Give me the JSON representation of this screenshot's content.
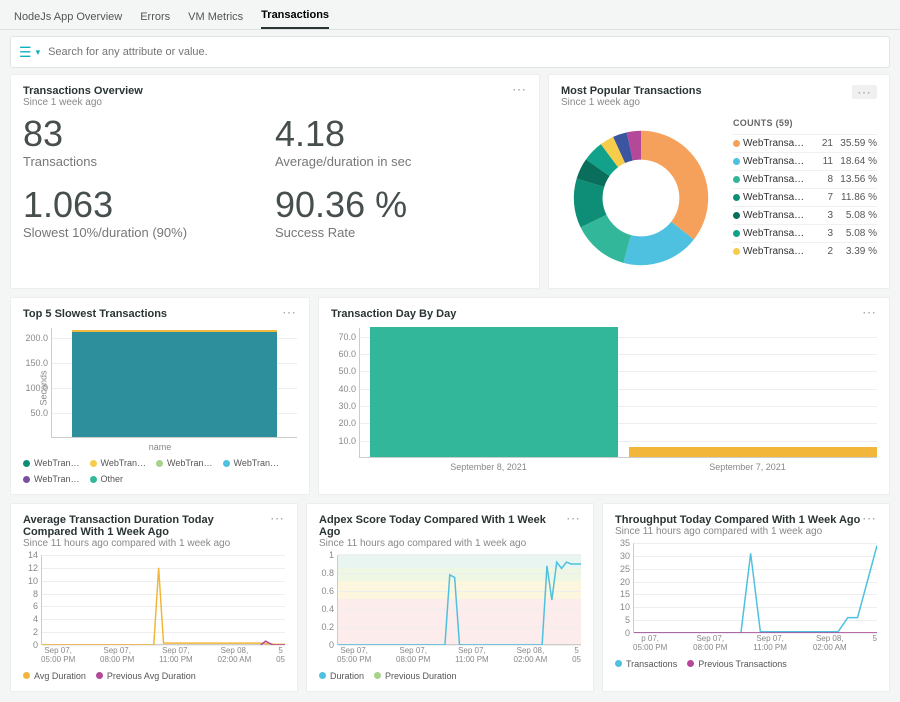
{
  "tabs": {
    "items": [
      "NodeJs App Overview",
      "Errors",
      "VM Metrics",
      "Transactions"
    ],
    "activeIndex": 3
  },
  "search": {
    "placeholder": "Search for any attribute or value."
  },
  "overview": {
    "title": "Transactions Overview",
    "subtitle": "Since 1 week ago",
    "metrics": [
      {
        "value": "83",
        "label": "Transactions"
      },
      {
        "value": "4.18",
        "label": "Average/duration in sec"
      },
      {
        "value": "1.063",
        "label": "Slowest 10%/duration (90%)"
      },
      {
        "value": "90.36 %",
        "label": "Success Rate"
      }
    ]
  },
  "popular": {
    "title": "Most Popular Transactions",
    "subtitle": "Since 1 week ago",
    "countsLabel": "COUNTS (59)",
    "colors": [
      "#f5a15b",
      "#4fc1e0",
      "#33b79a",
      "#0e8e76",
      "#0a6e5c",
      "#12a18a",
      "#f7cc4b",
      "#3b55a0",
      "#b4499a"
    ],
    "slices": [
      35.59,
      18.64,
      13.56,
      11.86,
      5.08,
      5.08,
      3.39,
      3.4,
      3.4
    ],
    "rows": [
      {
        "name": "WebTransaction…",
        "count": "21",
        "pct": "35.59 %",
        "color": "#f5a15b"
      },
      {
        "name": "WebTransaction…",
        "count": "11",
        "pct": "18.64 %",
        "color": "#4fc1e0"
      },
      {
        "name": "WebTransaction…",
        "count": "8",
        "pct": "13.56 %",
        "color": "#33b79a"
      },
      {
        "name": "WebTransaction…",
        "count": "7",
        "pct": "11.86 %",
        "color": "#0e8e76"
      },
      {
        "name": "WebTransaction…",
        "count": "3",
        "pct": "5.08 %",
        "color": "#0a6e5c"
      },
      {
        "name": "WebTransaction…",
        "count": "3",
        "pct": "5.08 %",
        "color": "#12a18a"
      },
      {
        "name": "WebTransaction…",
        "count": "2",
        "pct": "3.39 %",
        "color": "#f7cc4b"
      }
    ]
  },
  "top5": {
    "title": "Top 5 Slowest Transactions",
    "yTicks": [
      "200.0",
      "150.0",
      "100.0",
      "50.0"
    ],
    "yMax": 220,
    "yAxisLabel": "Seconds",
    "xAxisLabel": "name",
    "barColor": "#2d8f9c",
    "barTopColor": "#f0b83e",
    "barHeight": 215,
    "legend": [
      {
        "label": "WebTran…",
        "color": "#0e8e76"
      },
      {
        "label": "WebTran…",
        "color": "#f7cc4b"
      },
      {
        "label": "WebTran…",
        "color": "#a7d28c"
      },
      {
        "label": "WebTran…",
        "color": "#4fc1e0"
      },
      {
        "label": "WebTran…",
        "color": "#7a4fa3"
      },
      {
        "label": "Other",
        "color": "#33b79a"
      }
    ]
  },
  "dayByDay": {
    "title": "Transaction Day By Day",
    "yTicks": [
      "70.0",
      "60.0",
      "50.0",
      "40.0",
      "30.0",
      "20.0",
      "10.0"
    ],
    "yMax": 75,
    "bars": [
      {
        "label": "September 8, 2021",
        "height": 75,
        "color": "#33b79a",
        "width": 0.48,
        "left": 0.02
      },
      {
        "label": "September 7, 2021",
        "height": 6,
        "color": "#f2b63a",
        "width": 0.48,
        "left": 0.52
      }
    ]
  },
  "avgDur": {
    "title": "Average Transaction Duration Today Compared With 1 Week Ago",
    "subtitle": "Since 11 hours ago compared with 1 week ago",
    "yTicks": [
      "14",
      "12",
      "10",
      "8",
      "6",
      "4",
      "2",
      "0"
    ],
    "yMax": 14,
    "xLabels": [
      "Sep 07,\n05:00 PM",
      "Sep 07,\n08:00 PM",
      "Sep 07,\n11:00 PM",
      "Sep 08,\n02:00 AM",
      "5\n05"
    ],
    "legend": [
      {
        "label": "Avg Duration",
        "color": "#f2b63a"
      },
      {
        "label": "Previous Avg Duration",
        "color": "#b4499a"
      }
    ],
    "series1": {
      "color": "#f2b63a",
      "points": [
        [
          0,
          0
        ],
        [
          0.22,
          0
        ],
        [
          0.24,
          0
        ],
        [
          0.46,
          0
        ],
        [
          0.48,
          12
        ],
        [
          0.5,
          0.3
        ],
        [
          0.9,
          0.3
        ],
        [
          0.96,
          0.1
        ],
        [
          1,
          0.1
        ]
      ]
    },
    "series2": {
      "color": "#b4499a",
      "points": [
        [
          0.9,
          0
        ],
        [
          0.92,
          0.6
        ],
        [
          0.95,
          0
        ],
        [
          1,
          0
        ]
      ]
    }
  },
  "adpex": {
    "title": "Adpex Score Today Compared With 1 Week Ago",
    "subtitle": "Since 11 hours ago compared with 1 week ago",
    "yTicks": [
      "1",
      "0.8",
      "0.6",
      "0.4",
      "0.2",
      "0"
    ],
    "yMax": 1,
    "bands": [
      {
        "from": 0.85,
        "to": 1.0,
        "color": "#e8f5f1"
      },
      {
        "from": 0.7,
        "to": 0.85,
        "color": "#eef7e3"
      },
      {
        "from": 0.5,
        "to": 0.7,
        "color": "#fdf6df"
      },
      {
        "from": 0.0,
        "to": 0.5,
        "color": "#fceceb"
      }
    ],
    "xLabels": [
      "Sep 07,\n05:00 PM",
      "Sep 07,\n08:00 PM",
      "Sep 07,\n11:00 PM",
      "Sep 08,\n02:00 AM",
      "5\n05"
    ],
    "legend": [
      {
        "label": "Duration",
        "color": "#4fc1e0"
      },
      {
        "label": "Previous Duration",
        "color": "#a7d28c"
      }
    ],
    "series1": {
      "color": "#4fc1e0",
      "points": [
        [
          0,
          0
        ],
        [
          0.44,
          0
        ],
        [
          0.46,
          0.78
        ],
        [
          0.48,
          0.75
        ],
        [
          0.5,
          0
        ],
        [
          0.84,
          0
        ],
        [
          0.86,
          0.88
        ],
        [
          0.88,
          0.5
        ],
        [
          0.9,
          0.92
        ],
        [
          0.92,
          0.85
        ],
        [
          0.94,
          0.92
        ],
        [
          0.96,
          0.9
        ],
        [
          1,
          0.9
        ]
      ]
    }
  },
  "throughput": {
    "title": "Throughput Today Compared With 1 Week Ago",
    "subtitle": "Since 11 hours ago compared with 1 week ago",
    "yTicks": [
      "35",
      "30",
      "25",
      "20",
      "15",
      "10",
      "5",
      "0"
    ],
    "yMax": 35,
    "xLabels": [
      "p 07,\n05:00 PM",
      "Sep 07,\n08:00 PM",
      "Sep 07,\n11:00 PM",
      "Sep 08,\n02:00 AM",
      "5"
    ],
    "legend": [
      {
        "label": "Transactions",
        "color": "#4fc1e0"
      },
      {
        "label": "Previous Transactions",
        "color": "#b4499a"
      }
    ],
    "series1": {
      "color": "#4fc1e0",
      "points": [
        [
          0,
          0
        ],
        [
          0.44,
          0
        ],
        [
          0.48,
          31
        ],
        [
          0.52,
          0.5
        ],
        [
          0.84,
          0.5
        ],
        [
          0.88,
          6
        ],
        [
          0.92,
          6
        ],
        [
          1,
          34
        ]
      ]
    },
    "series2": {
      "color": "#b4499a",
      "points": [
        [
          0,
          0
        ],
        [
          1,
          0
        ]
      ]
    }
  }
}
